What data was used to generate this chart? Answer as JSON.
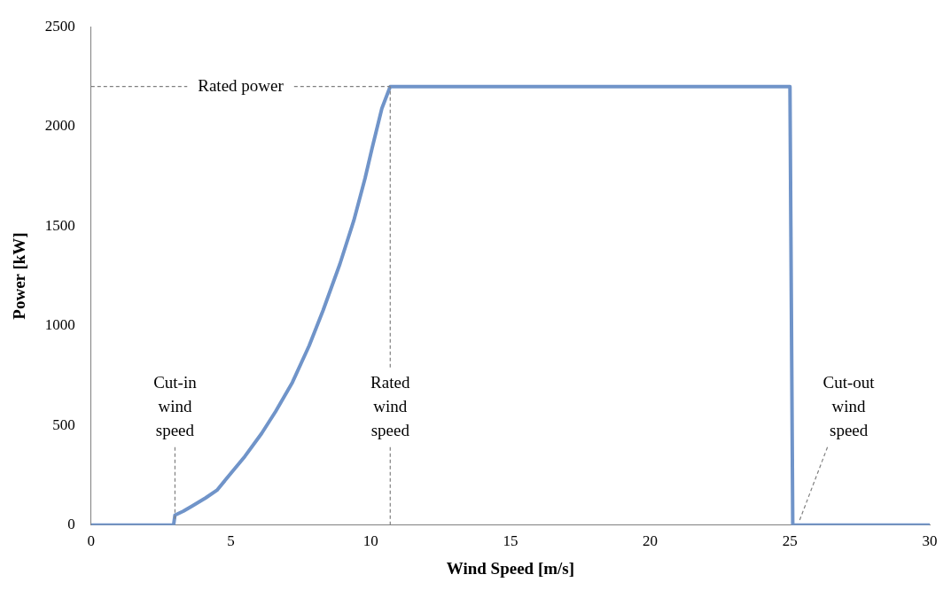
{
  "chart_data": {
    "type": "line",
    "xlabel": "Wind Speed [m/s]",
    "ylabel": "Power [kW]",
    "x": [
      0,
      2.95,
      3.0,
      3.3,
      3.6,
      4.1,
      4.5,
      5.0,
      5.5,
      6.1,
      6.6,
      7.2,
      7.8,
      8.3,
      8.9,
      9.4,
      9.8,
      10.05,
      10.4,
      10.7,
      25.0,
      25.1,
      30
    ],
    "series": [
      {
        "color": "#7094c9",
        "values": [
          0,
          0,
          50,
          70,
          95,
          137,
          175,
          260,
          345,
          460,
          570,
          716,
          900,
          1078,
          1310,
          1529,
          1740,
          1890,
          2090,
          2200,
          2200,
          0,
          0
        ]
      }
    ],
    "xlim": [
      0,
      30
    ],
    "xticks": [
      0,
      5,
      10,
      15,
      20,
      25,
      30
    ],
    "ylim": [
      0,
      2500
    ],
    "yticks": [
      0,
      500,
      1000,
      1500,
      2000,
      2500
    ],
    "grid": false,
    "legend": false,
    "marker": "none",
    "line_style": "solid",
    "ref_lines": [
      {
        "axis": "y",
        "value": 2200,
        "label": "Rated power",
        "color": "#808080",
        "line_style": "dashed"
      },
      {
        "axis": "x",
        "value": 10.7,
        "label": "Rated wind speed",
        "color": "#808080",
        "line_style": "dashed"
      }
    ],
    "annotations": [
      {
        "text": "Cut-in wind speed",
        "x": 3,
        "y": 0
      },
      {
        "text": "Cut-out wind speed",
        "x": 25.2,
        "y": 0
      }
    ]
  }
}
